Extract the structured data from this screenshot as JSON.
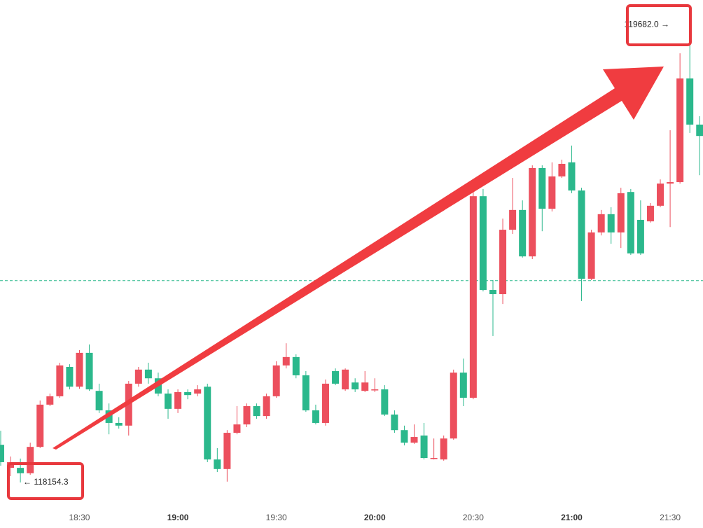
{
  "chart_data": {
    "type": "candlestick",
    "categories": [
      null,
      null,
      null,
      null,
      null,
      null,
      null,
      null,
      "18:30",
      null,
      null,
      null,
      null,
      null,
      null,
      null,
      null,
      null,
      "19:00",
      null,
      null,
      null,
      null,
      null,
      null,
      null,
      null,
      null,
      "19:30",
      null,
      null,
      null,
      null,
      null,
      null,
      null,
      null,
      null,
      "20:00",
      null,
      null,
      null,
      null,
      null,
      null,
      null,
      null,
      null,
      "20:30",
      null,
      null,
      null,
      null,
      null,
      null,
      null,
      null,
      null,
      "21:00",
      null,
      null,
      null,
      null,
      null,
      null,
      null,
      null,
      null,
      "21:30",
      null,
      null,
      null
    ],
    "open": [
      118280,
      118203,
      118203,
      118185,
      118273,
      118414,
      118442,
      118540,
      118474,
      118587,
      118460,
      118395,
      118353,
      118344,
      118484,
      118531,
      118502,
      118451,
      118400,
      118456,
      118451,
      118474,
      118231,
      118199,
      118320,
      118348,
      118409,
      118376,
      118442,
      118545,
      118573,
      118512,
      118395,
      118353,
      118526,
      118465,
      118488,
      118460,
      118465,
      118465,
      118381,
      118329,
      118287,
      118311,
      118236,
      118231,
      118301,
      118521,
      118437,
      119110,
      118797,
      118783,
      118998,
      119064,
      118909,
      119204,
      119068,
      119176,
      119223,
      119129,
      118834,
      118989,
      119050,
      118989,
      119124,
      119031,
      119026,
      119078,
      119152,
      119157,
      119503,
      119349
    ],
    "high": [
      118327,
      118241,
      118234,
      118287,
      118428,
      118451,
      118554,
      118549,
      118596,
      118615,
      118484,
      118418,
      118372,
      118493,
      118540,
      118554,
      118521,
      118465,
      118465,
      118465,
      118479,
      118484,
      118269,
      118329,
      118409,
      118418,
      118418,
      118451,
      118559,
      118619,
      118582,
      118526,
      118414,
      118498,
      118535,
      118535,
      118502,
      118526,
      118502,
      118479,
      118395,
      118344,
      118348,
      118353,
      118301,
      118311,
      118531,
      118568,
      119134,
      119134,
      118830,
      119035,
      119171,
      119096,
      119213,
      119213,
      119223,
      119232,
      119279,
      119138,
      118998,
      119064,
      119073,
      119138,
      119134,
      119096,
      119087,
      119166,
      119330,
      119587,
      119682.0,
      119377
    ],
    "low": [
      118210,
      118175,
      118154.3,
      118180,
      118269,
      118409,
      118437,
      118465,
      118467,
      118460,
      118386,
      118315,
      118334,
      118311,
      118474,
      118484,
      118442,
      118367,
      118386,
      118432,
      118442,
      118222,
      118189,
      118157,
      118315,
      118339,
      118367,
      118367,
      118437,
      118535,
      118502,
      118390,
      118348,
      118344,
      118479,
      118460,
      118456,
      118456,
      118456,
      118376,
      118320,
      118278,
      118283,
      118231,
      118231,
      118227,
      118297,
      118409,
      118432,
      118792,
      118643,
      118750,
      118984,
      118905,
      118900,
      118993,
      119059,
      119171,
      119120,
      118760,
      118830,
      118979,
      118951,
      118937,
      118914,
      118914,
      119022,
      119073,
      119007,
      119152,
      119321,
      119180
    ],
    "close": [
      118222,
      118222,
      118185,
      118273,
      118414,
      118442,
      118545,
      118474,
      118587,
      118465,
      118395,
      118353,
      118344,
      118484,
      118531,
      118502,
      118451,
      118400,
      118456,
      118446,
      118465,
      118231,
      118199,
      118320,
      118348,
      118409,
      118376,
      118442,
      118545,
      118573,
      118512,
      118395,
      118353,
      118484,
      118484,
      118531,
      118465,
      118488,
      118465,
      118381,
      118329,
      118287,
      118306,
      118236,
      118236,
      118301,
      118521,
      118437,
      119110,
      118797,
      118783,
      118998,
      119064,
      118909,
      119204,
      119068,
      119176,
      119218,
      119129,
      118834,
      118989,
      119050,
      118989,
      119120,
      118919,
      118919,
      119078,
      119152,
      119157,
      119503,
      119349,
      119311
    ],
    "up_color": "#ec4f5d",
    "down_color": "#2bb88c",
    "ylim": [
      118070,
      119765
    ],
    "price_line": 118828,
    "price_line_color": "#2bb88c",
    "annotations": [
      {
        "label": "119682.0 →",
        "value": 119682.0
      },
      {
        "label": "← 118154.3",
        "value": 118154.3
      }
    ]
  }
}
